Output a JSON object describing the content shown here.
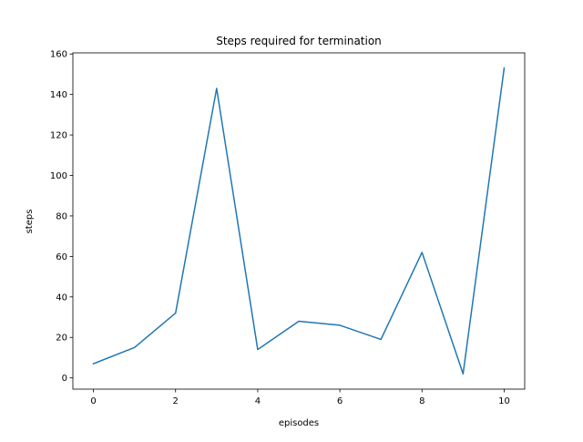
{
  "chart_data": {
    "type": "line",
    "title": "Steps required for termination",
    "xlabel": "episodes",
    "ylabel": "steps",
    "x": [
      0,
      1,
      2,
      3,
      4,
      5,
      6,
      7,
      8,
      9,
      10
    ],
    "series": [
      {
        "values": [
          7,
          15,
          32,
          143,
          14,
          28,
          26,
          19,
          62,
          2,
          153
        ]
      }
    ],
    "xlim": [
      -0.5,
      10.5
    ],
    "ylim": [
      -5.55,
      160.55
    ],
    "xticks": [
      0,
      2,
      4,
      6,
      8,
      10
    ],
    "yticks": [
      0,
      20,
      40,
      60,
      80,
      100,
      120,
      140,
      160
    ],
    "grid": false,
    "line_color": "#1f77b4"
  }
}
